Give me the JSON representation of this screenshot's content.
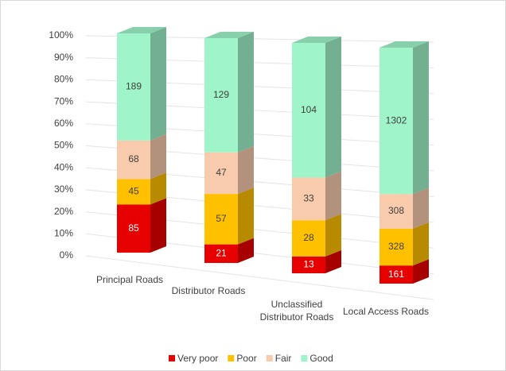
{
  "chart_data": {
    "type": "bar",
    "stacking": "percent",
    "categories": [
      "Principal Roads",
      "Distributor Roads",
      "Unclassified Distributor Roads",
      "Local Access Roads"
    ],
    "series": [
      {
        "name": "Very poor",
        "color": "#e60000",
        "values": [
          85,
          21,
          13,
          161
        ]
      },
      {
        "name": "Poor",
        "color": "#ffc000",
        "values": [
          45,
          57,
          28,
          328
        ]
      },
      {
        "name": "Fair",
        "color": "#f8cbad",
        "values": [
          68,
          47,
          33,
          308
        ]
      },
      {
        "name": "Good",
        "color": "#9ff5c9",
        "values": [
          189,
          129,
          104,
          1302
        ]
      }
    ],
    "ylim": [
      0,
      100
    ],
    "yticks": [
      {
        "value": 0,
        "label": "0%"
      },
      {
        "value": 10,
        "label": "10%"
      },
      {
        "value": 20,
        "label": "20%"
      },
      {
        "value": 30,
        "label": "30%"
      },
      {
        "value": 40,
        "label": "40%"
      },
      {
        "value": 50,
        "label": "50%"
      },
      {
        "value": 60,
        "label": "60%"
      },
      {
        "value": 70,
        "label": "70%"
      },
      {
        "value": 80,
        "label": "80%"
      },
      {
        "value": 90,
        "label": "90%"
      },
      {
        "value": 100,
        "label": "100%"
      }
    ],
    "grid": true,
    "legend": "bottom"
  }
}
